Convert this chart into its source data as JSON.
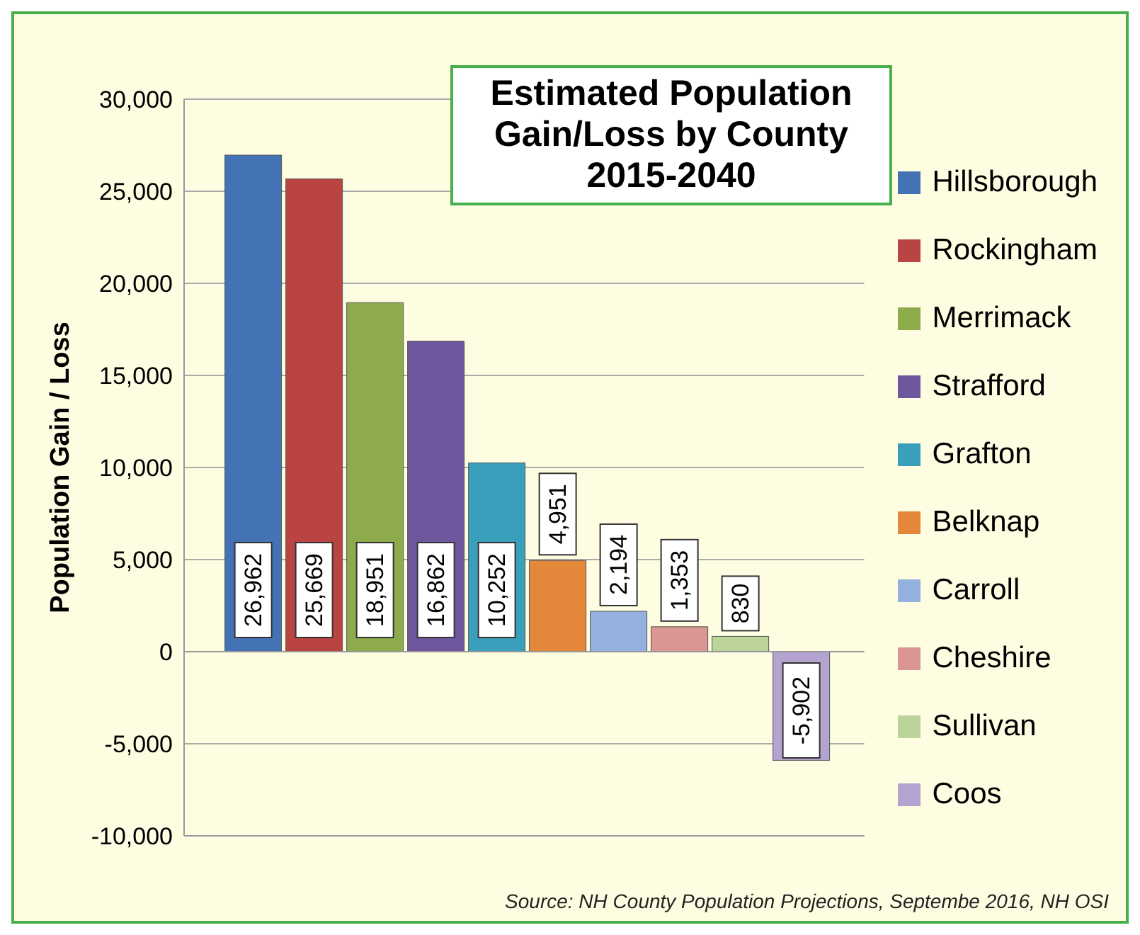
{
  "chart_data": {
    "type": "bar",
    "title": "Estimated Population Gain/Loss by County 2015-2040",
    "ylabel": "Population Gain / Loss",
    "categories": [
      null
    ],
    "series": [
      {
        "name": "Hillsborough",
        "color": "#4373b4",
        "values": [
          26962
        ],
        "value_labels": [
          "26,962"
        ]
      },
      {
        "name": "Rockingham",
        "color": "#b94442",
        "values": [
          25669
        ],
        "value_labels": [
          "25,669"
        ]
      },
      {
        "name": "Merrimack",
        "color": "#8dab4a",
        "values": [
          18951
        ],
        "value_labels": [
          "18,951"
        ]
      },
      {
        "name": "Strafford",
        "color": "#6f579e",
        "values": [
          16862
        ],
        "value_labels": [
          "16,862"
        ]
      },
      {
        "name": "Grafton",
        "color": "#3a9fba",
        "values": [
          10252
        ],
        "value_labels": [
          "10,252"
        ]
      },
      {
        "name": "Belknap",
        "color": "#e5873a",
        "values": [
          4951
        ],
        "value_labels": [
          "4,951"
        ]
      },
      {
        "name": "Carroll",
        "color": "#94b0de",
        "values": [
          2194
        ],
        "value_labels": [
          "2,194"
        ]
      },
      {
        "name": "Cheshire",
        "color": "#db9593",
        "values": [
          1353
        ],
        "value_labels": [
          "1,353"
        ]
      },
      {
        "name": "Sullivan",
        "color": "#bcd39a",
        "values": [
          830
        ],
        "value_labels": [
          "830"
        ]
      },
      {
        "name": "Coos",
        "color": "#b4a3d1",
        "values": [
          -5902
        ],
        "value_labels": [
          "-5,902"
        ]
      }
    ],
    "ylim": [
      -10000,
      30000
    ],
    "yticks": [
      {
        "value": -10000,
        "label": "-10,000"
      },
      {
        "value": -5000,
        "label": "-5,000"
      },
      0,
      {
        "value": 5000,
        "label": "5,000"
      },
      {
        "value": 10000,
        "label": "10,000"
      },
      {
        "value": 15000,
        "label": "15,000"
      },
      {
        "value": 20000,
        "label": "20,000"
      },
      {
        "value": 25000,
        "label": "25,000"
      },
      {
        "value": 30000,
        "label": "30,000"
      }
    ],
    "grid": "y",
    "legend": "right",
    "tick_labels": "y",
    "annotations": [
      "Source:  NH County Population Projections, Septembe 2016, NH OSI"
    ]
  }
}
